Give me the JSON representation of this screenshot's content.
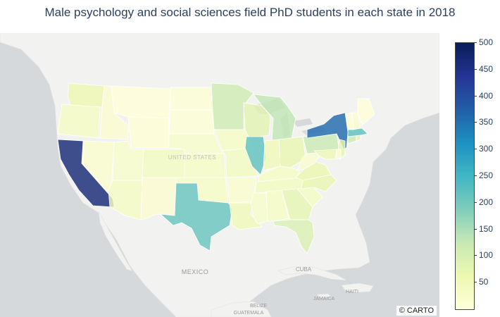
{
  "title": "Male psychology and social sciences field PhD students in each state in 2018",
  "attribution": "© CARTO",
  "map_labels": {
    "united_states": "UNITED STATES",
    "mexico": "MEXICO",
    "cuba": "CUBA",
    "haiti": "HAITI",
    "jamaica": "JAMAICA",
    "belize": "BELIZE",
    "guatemala": "GUATEMALA"
  },
  "colorbar": {
    "ticks": [
      "50",
      "100",
      "150",
      "200",
      "250",
      "300",
      "350",
      "400",
      "450",
      "500"
    ],
    "min": 0,
    "max": 500,
    "colors": [
      "#ffffd9",
      "#edf8b1",
      "#c7e9b4",
      "#7fcdbb",
      "#41b6c4",
      "#1d91c0",
      "#225ea8",
      "#253494",
      "#081d58"
    ]
  },
  "chart_data": {
    "type": "choropleth",
    "title": "Male psychology and social sciences field PhD students in each state in 2018",
    "colorscale": "YlGnBu",
    "range": [
      0,
      500
    ],
    "values": {
      "California": 470,
      "New York": 360,
      "Texas": 210,
      "Illinois": 220,
      "Massachusetts": 220,
      "Pennsylvania": 120,
      "Michigan": 130,
      "Minnesota": 110,
      "Florida": 95,
      "Wisconsin": 80,
      "Washington": 60,
      "Georgia": 75,
      "North Carolina": 70,
      "Ohio": 70,
      "Virginia": 65,
      "New Jersey": 70,
      "Connecticut": 110,
      "Rhode Island": 80,
      "Louisiana": 50,
      "Oregon": 35,
      "Colorado": 40,
      "Arizona": 35,
      "Indiana": 50,
      "Missouri": 40,
      "Tennessee": 40,
      "Maryland": 55,
      "Kansas": 30,
      "Iowa": 30,
      "South Carolina": 35,
      "Alabama": 30,
      "Mississippi": 25,
      "Kentucky": 30,
      "Oklahoma": 30,
      "Arkansas": 20,
      "Nebraska": 25,
      "Utah": 25,
      "Nevada": 20,
      "New Mexico": 15,
      "Idaho": 15,
      "Montana": 0,
      "Wyoming": 5,
      "North Dakota": 10,
      "South Dakota": 10,
      "West Virginia": 15,
      "Vermont": 10,
      "New Hampshire": 15,
      "Maine": 0,
      "Delaware": 15
    }
  }
}
